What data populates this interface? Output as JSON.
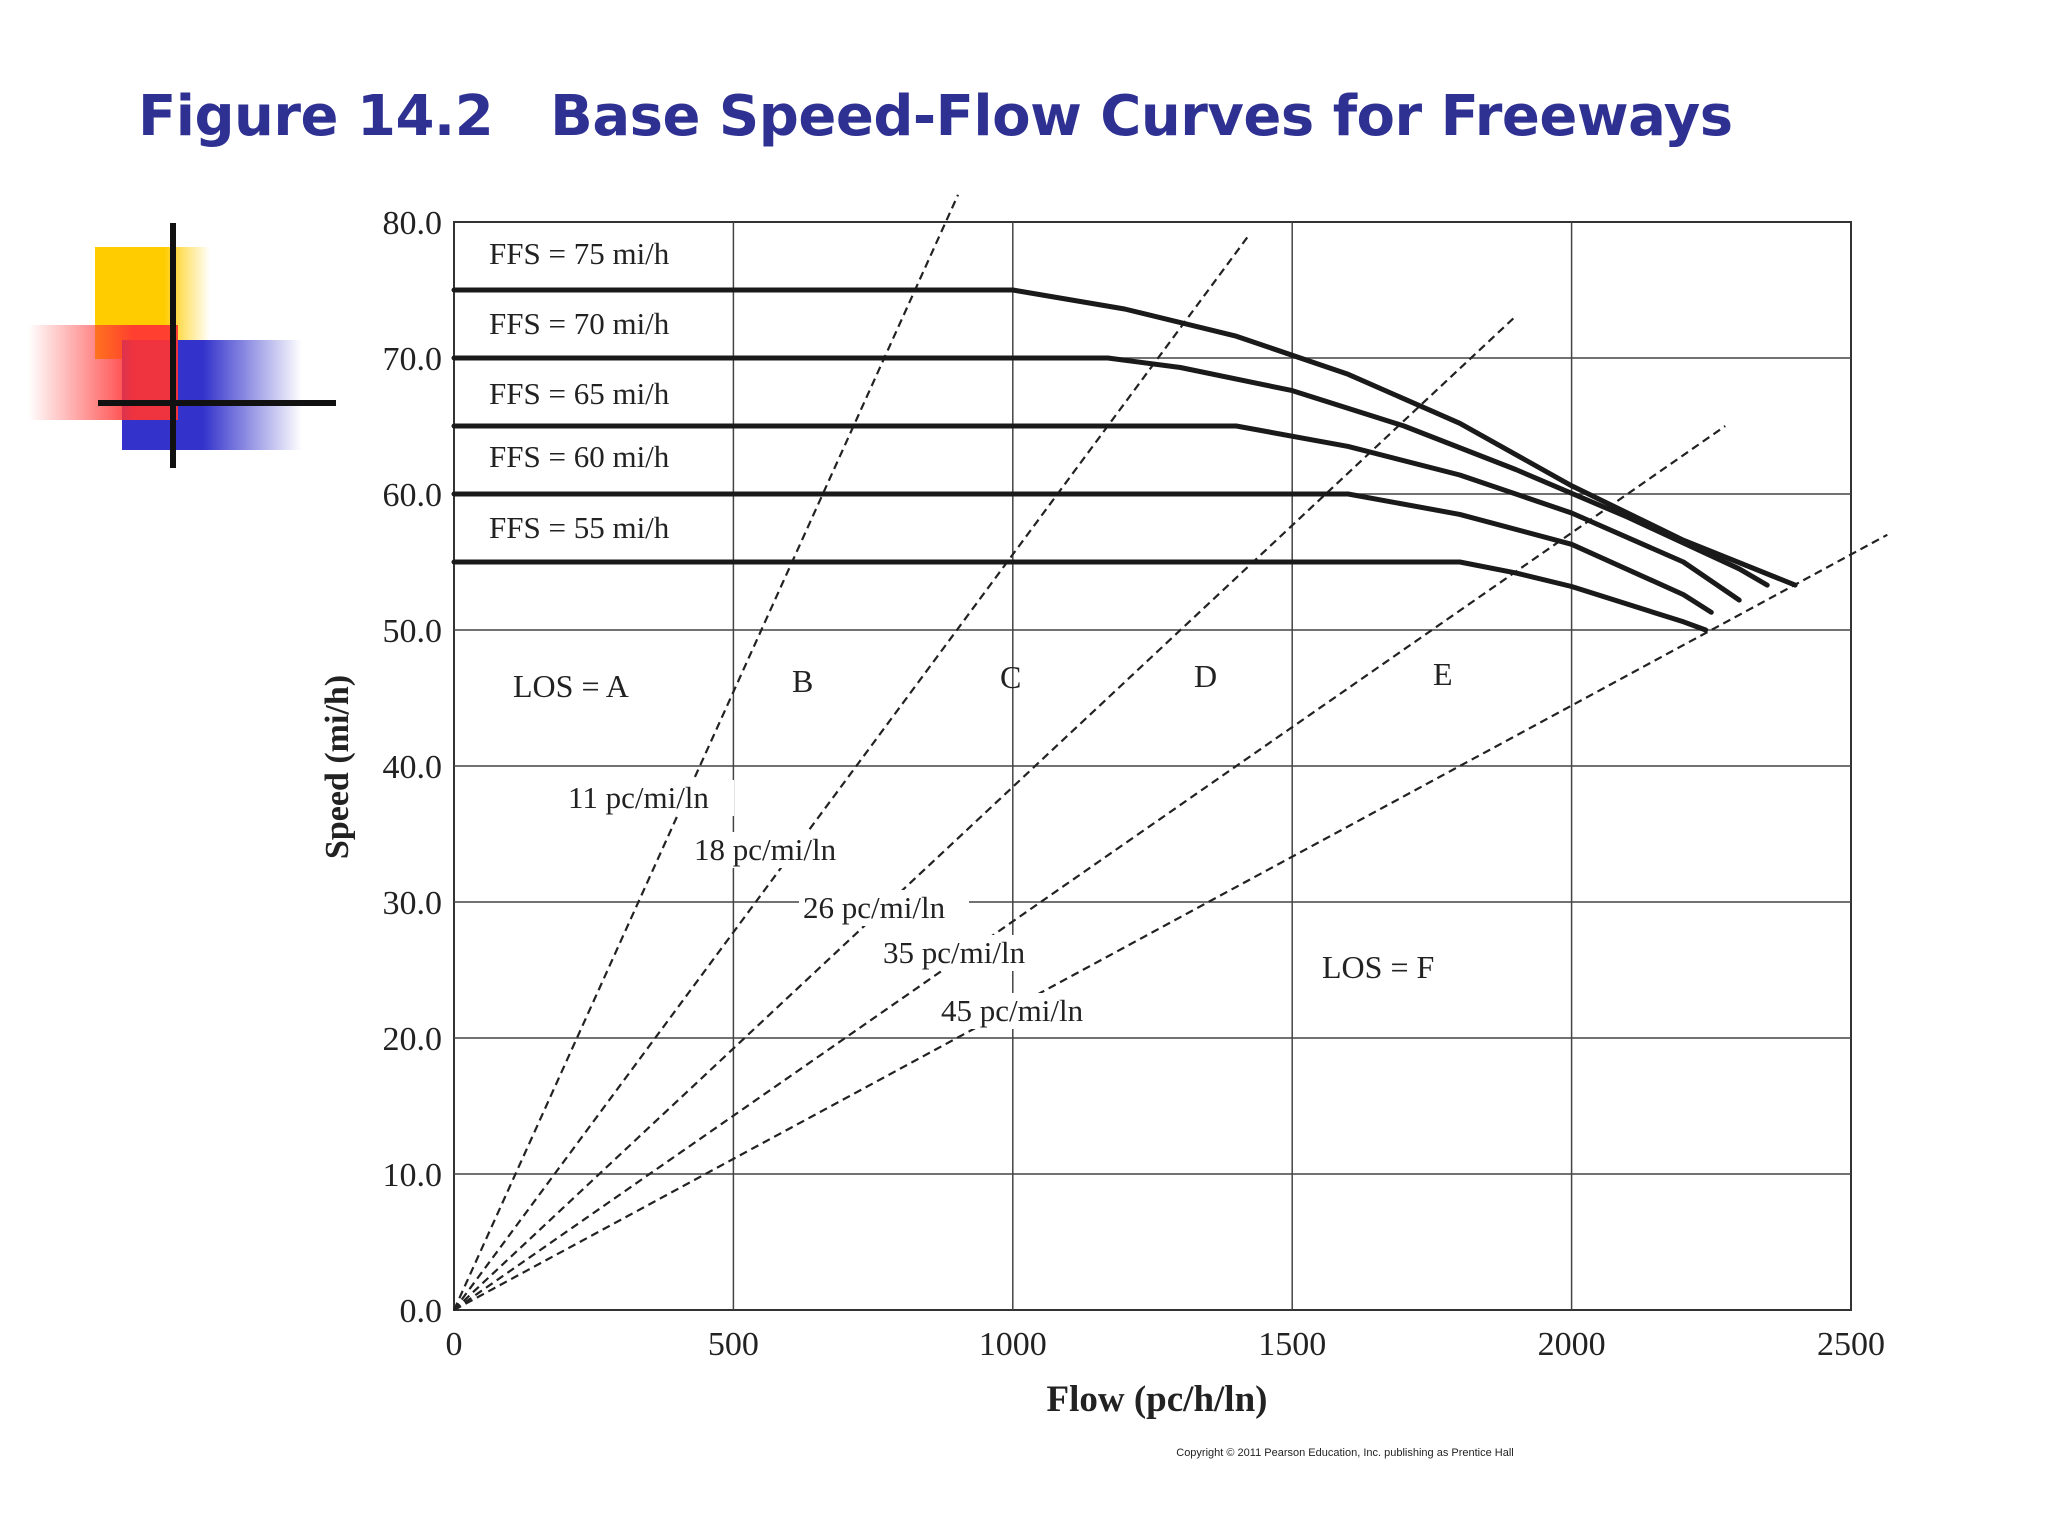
{
  "slide": {
    "title": "Figure 14.2   Base Speed-Flow Curves for Freeways",
    "copyright": "Copyright © 2011 Pearson Education, Inc. publishing as Prentice Hall"
  },
  "chart_data": {
    "type": "line",
    "title": "",
    "xlabel": "Flow (pc/h/ln)",
    "ylabel": "Speed (mi/h)",
    "xlim": [
      0,
      2500
    ],
    "ylim": [
      0,
      80
    ],
    "xticks": [
      "0",
      "500",
      "1000",
      "1500",
      "2000",
      "2500"
    ],
    "yticks": [
      "0.0",
      "10.0",
      "20.0",
      "30.0",
      "40.0",
      "50.0",
      "60.0",
      "70.0",
      "80.0"
    ],
    "grid": true,
    "series": [
      {
        "name": "FFS = 75 mi/h",
        "points": [
          [
            0,
            75
          ],
          [
            1000,
            75
          ],
          [
            1200,
            73.6
          ],
          [
            1400,
            71.6
          ],
          [
            1600,
            68.8
          ],
          [
            1800,
            65.2
          ],
          [
            2000,
            60.6
          ],
          [
            2200,
            56.6
          ],
          [
            2400,
            53.3
          ]
        ]
      },
      {
        "name": "FFS = 70 mi/h",
        "points": [
          [
            0,
            70
          ],
          [
            1170,
            70
          ],
          [
            1300,
            69.3
          ],
          [
            1500,
            67.6
          ],
          [
            1700,
            65
          ],
          [
            1900,
            61.8
          ],
          [
            2100,
            58.3
          ],
          [
            2300,
            54.5
          ],
          [
            2350,
            53.3
          ]
        ]
      },
      {
        "name": "FFS = 65 mi/h",
        "points": [
          [
            0,
            65
          ],
          [
            1400,
            65
          ],
          [
            1600,
            63.5
          ],
          [
            1800,
            61.4
          ],
          [
            2000,
            58.6
          ],
          [
            2200,
            55
          ],
          [
            2300,
            52.2
          ]
        ]
      },
      {
        "name": "FFS = 60 mi/h",
        "points": [
          [
            0,
            60
          ],
          [
            1600,
            60
          ],
          [
            1800,
            58.5
          ],
          [
            2000,
            56.3
          ],
          [
            2200,
            52.6
          ],
          [
            2250,
            51.3
          ]
        ]
      },
      {
        "name": "FFS = 55 mi/h",
        "points": [
          [
            0,
            55
          ],
          [
            1800,
            55
          ],
          [
            1900,
            54.2
          ],
          [
            2000,
            53.2
          ],
          [
            2200,
            50.6
          ],
          [
            2240,
            50
          ]
        ]
      }
    ],
    "density_lines": [
      {
        "label": "11 pc/mi/ln",
        "density": 11
      },
      {
        "label": "18 pc/mi/ln",
        "density": 18
      },
      {
        "label": "26 pc/mi/ln",
        "density": 26
      },
      {
        "label": "35 pc/mi/ln",
        "density": 35
      },
      {
        "label": "45 pc/mi/ln",
        "density": 45
      }
    ],
    "los_labels": [
      "LOS = A",
      "B",
      "C",
      "D",
      "E",
      "LOS = F"
    ]
  }
}
